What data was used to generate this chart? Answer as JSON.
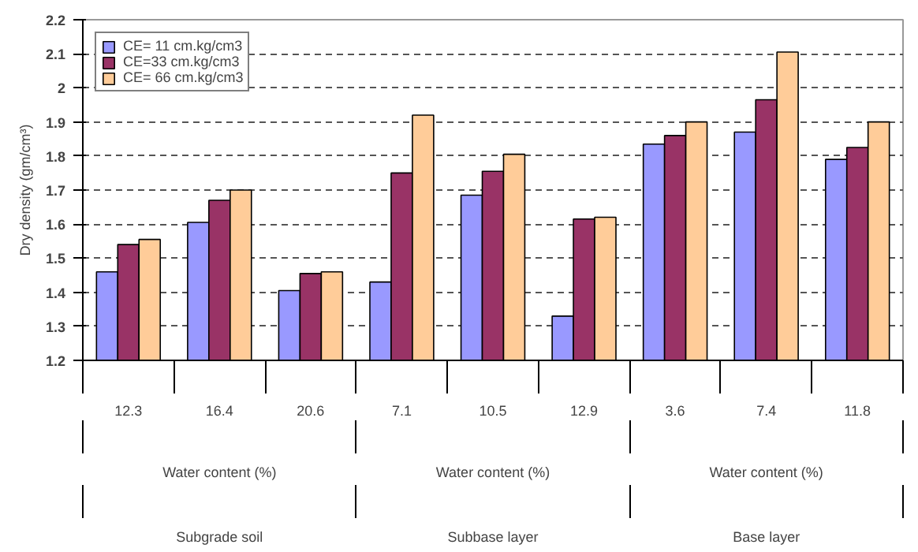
{
  "chart_data": {
    "type": "bar",
    "ylabel": "Dry density (gm/cm³)",
    "categories": [
      "12.3",
      "16.4",
      "20.6",
      "7.1",
      "10.5",
      "12.9",
      "3.6",
      "7.4",
      "11.8"
    ],
    "series": [
      {
        "name": "CE= 11 cm.kg/cm3",
        "color": "#9999ff",
        "values": [
          1.46,
          1.605,
          1.405,
          1.43,
          1.685,
          1.33,
          1.835,
          1.87,
          1.79
        ]
      },
      {
        "name": "CE=33 cm.kg/cm3",
        "color": "#993366",
        "values": [
          1.54,
          1.67,
          1.455,
          1.75,
          1.755,
          1.615,
          1.86,
          1.965,
          1.825
        ]
      },
      {
        "name": "CE= 66 cm.kg/cm3",
        "color": "#ffcc99",
        "values": [
          1.555,
          1.7,
          1.46,
          1.92,
          1.805,
          1.62,
          1.9,
          2.105,
          1.9
        ]
      }
    ],
    "annotations": [
      "Water content (%)",
      "Subgrade soil",
      "Water content (%)",
      "Subbase layer",
      "Water content (%)",
      "Base layer"
    ],
    "ylim": [
      1.2,
      2.2
    ],
    "yticks": [
      1.2,
      1.3,
      1.4,
      1.5,
      1.6,
      1.7,
      1.8,
      1.9,
      2,
      2.1,
      2.2
    ],
    "grid": "y",
    "legend": "top left"
  }
}
